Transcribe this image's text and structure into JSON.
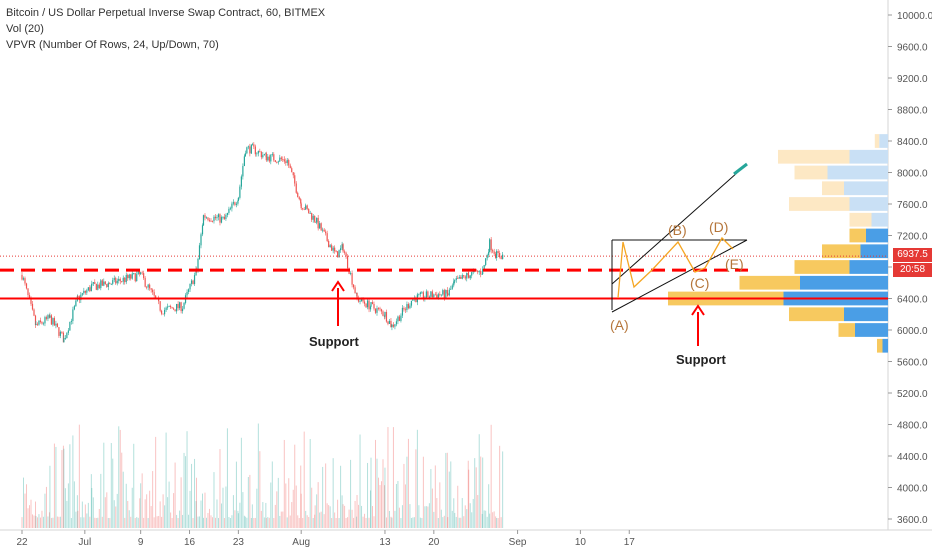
{
  "legend": {
    "title": "Bitcoin / US Dollar Perpetual Inverse Swap Contract, 60, BITMEX",
    "vol": "Vol (20)",
    "vpvr": "VPVR (Number Of Rows, 24, Up/Down, 70)"
  },
  "price_tags": {
    "last_price": "6937.5",
    "countdown": "20:58"
  },
  "annotations": {
    "support_left": "Support",
    "support_right": "Support",
    "wave_a": "(A)",
    "wave_b": "(B)",
    "wave_c": "(C)",
    "wave_d": "(D)",
    "wave_e": "(E)"
  },
  "colors": {
    "up": "#26a69a",
    "down": "#ef5350",
    "support": "#ff0000",
    "wave": "#f5a623",
    "vpvr_up_active": "#4a9ee6",
    "vpvr_down_active": "#f7c95f",
    "vpvr_up": "#c9e0f5",
    "vpvr_down": "#fde8c4"
  },
  "chart_data": {
    "type": "candlestick",
    "symbol": "Bitcoin / US Dollar Perpetual Inverse Swap Contract",
    "interval": "60",
    "exchange": "BITMEX",
    "ylim": [
      3500,
      10300
    ],
    "y_ticks": [
      "10000.0",
      "9600.0",
      "9200.0",
      "8800.0",
      "8400.0",
      "8000.0",
      "7600.0",
      "7200.0",
      "6800.0",
      "6400.0",
      "6000.0",
      "5600.0",
      "5200.0",
      "4800.0",
      "4400.0",
      "4000.0",
      "3600.0"
    ],
    "x_ticks": [
      "22",
      "Jul",
      "9",
      "16",
      "23",
      "Aug",
      "13",
      "20",
      "Sep",
      "10",
      "17"
    ],
    "price_keypoints": [
      {
        "date": "Jun 22",
        "price": 6700
      },
      {
        "date": "Jun 24",
        "price": 6050
      },
      {
        "date": "Jun 26",
        "price": 6150
      },
      {
        "date": "Jun 28",
        "price": 5880
      },
      {
        "date": "Jun 30",
        "price": 6400
      },
      {
        "date": "Jul 2",
        "price": 6550
      },
      {
        "date": "Jul 5",
        "price": 6600
      },
      {
        "date": "Jul 9",
        "price": 6700
      },
      {
        "date": "Jul 12",
        "price": 6250
      },
      {
        "date": "Jul 15",
        "price": 6300
      },
      {
        "date": "Jul 17",
        "price": 6750
      },
      {
        "date": "Jul 18",
        "price": 7450
      },
      {
        "date": "Jul 21",
        "price": 7400
      },
      {
        "date": "Jul 23",
        "price": 7700
      },
      {
        "date": "Jul 24",
        "price": 8300
      },
      {
        "date": "Jul 25",
        "price": 8300
      },
      {
        "date": "Jul 27",
        "price": 8200
      },
      {
        "date": "Jul 30",
        "price": 8150
      },
      {
        "date": "Aug 1",
        "price": 7600
      },
      {
        "date": "Aug 3",
        "price": 7400
      },
      {
        "date": "Aug 6",
        "price": 6950
      },
      {
        "date": "Aug 7",
        "price": 7050
      },
      {
        "date": "Aug 9",
        "price": 6400
      },
      {
        "date": "Aug 11",
        "price": 6300
      },
      {
        "date": "Aug 13",
        "price": 6200
      },
      {
        "date": "Aug 14",
        "price": 6050
      },
      {
        "date": "Aug 17",
        "price": 6400
      },
      {
        "date": "Aug 20",
        "price": 6450
      },
      {
        "date": "Aug 22",
        "price": 6450
      },
      {
        "date": "Aug 23",
        "price": 6600
      },
      {
        "date": "Aug 25",
        "price": 6700
      },
      {
        "date": "Aug 27",
        "price": 6750
      },
      {
        "date": "Aug 28",
        "price": 7100
      },
      {
        "date": "Aug 29",
        "price": 6950
      },
      {
        "date": "Aug 30",
        "price": 6940
      }
    ],
    "support_lines": [
      {
        "price": 6400,
        "style": "solid"
      },
      {
        "price": 6760,
        "style": "dashed"
      }
    ],
    "last_price": 6937.5,
    "vpvr": [
      {
        "price": 8400,
        "up": 0.08,
        "down": 0.04,
        "active": false
      },
      {
        "price": 8200,
        "up": 0.35,
        "down": 0.65,
        "active": false
      },
      {
        "price": 8000,
        "up": 0.55,
        "down": 0.3,
        "active": false
      },
      {
        "price": 7800,
        "up": 0.4,
        "down": 0.2,
        "active": false
      },
      {
        "price": 7600,
        "up": 0.35,
        "down": 0.55,
        "active": false
      },
      {
        "price": 7400,
        "up": 0.15,
        "down": 0.2,
        "active": false
      },
      {
        "price": 7200,
        "up": 0.2,
        "down": 0.15,
        "active": true
      },
      {
        "price": 7000,
        "up": 0.25,
        "down": 0.35,
        "active": true
      },
      {
        "price": 6800,
        "up": 0.35,
        "down": 0.5,
        "active": true
      },
      {
        "price": 6600,
        "up": 0.8,
        "down": 0.55,
        "active": true
      },
      {
        "price": 6400,
        "up": 0.95,
        "down": 1.05,
        "active": true
      },
      {
        "price": 6200,
        "up": 0.4,
        "down": 0.5,
        "active": true
      },
      {
        "price": 6000,
        "up": 0.3,
        "down": 0.15,
        "active": true
      },
      {
        "price": 5800,
        "up": 0.05,
        "down": 0.05,
        "active": true
      }
    ]
  }
}
